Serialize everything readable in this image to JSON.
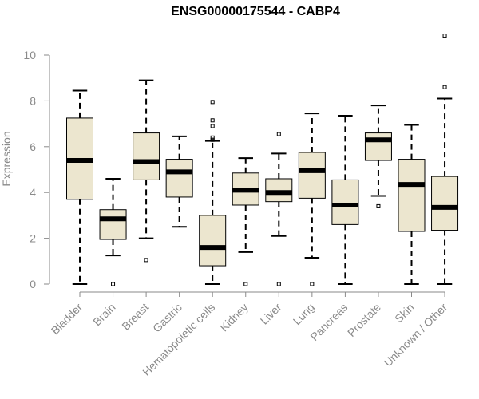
{
  "chart_data": {
    "type": "boxplot",
    "title": "ENSG00000175544 - CABP4",
    "xlabel": "",
    "ylabel": "Expression",
    "ylim": [
      0,
      11
    ],
    "yticks": [
      0,
      2,
      4,
      6,
      8,
      10
    ],
    "grid": false,
    "colors": {
      "box_fill": "#ece6cf",
      "box_stroke": "#000000",
      "axis": "#8a8a8a"
    },
    "categories": [
      "Bladder",
      "Brain",
      "Breast",
      "Gastric",
      "Hematopoietic cells",
      "Kidney",
      "Liver",
      "Lung",
      "Pancreas",
      "Prostate",
      "Skin",
      "Unknown / Other"
    ],
    "boxes": [
      {
        "category": "Bladder",
        "whisker_low": 0.0,
        "q1": 3.7,
        "median": 5.4,
        "q3": 7.25,
        "whisker_high": 8.45,
        "outliers": []
      },
      {
        "category": "Brain",
        "whisker_low": 1.25,
        "q1": 1.95,
        "median": 2.85,
        "q3": 3.25,
        "whisker_high": 4.6,
        "outliers": [
          0.0
        ]
      },
      {
        "category": "Breast",
        "whisker_low": 2.0,
        "q1": 4.55,
        "median": 5.35,
        "q3": 6.6,
        "whisker_high": 8.9,
        "outliers": [
          1.05
        ]
      },
      {
        "category": "Gastric",
        "whisker_low": 2.5,
        "q1": 3.8,
        "median": 4.9,
        "q3": 5.45,
        "whisker_high": 6.45,
        "outliers": []
      },
      {
        "category": "Hematopoietic cells",
        "whisker_low": 0.0,
        "q1": 0.8,
        "median": 1.6,
        "q3": 3.0,
        "whisker_high": 6.25,
        "outliers": [
          6.3,
          6.4,
          6.9,
          7.15,
          7.95
        ]
      },
      {
        "category": "Kidney",
        "whisker_low": 1.4,
        "q1": 3.45,
        "median": 4.1,
        "q3": 4.85,
        "whisker_high": 5.5,
        "outliers": [
          0.0
        ]
      },
      {
        "category": "Liver",
        "whisker_low": 2.1,
        "q1": 3.6,
        "median": 4.0,
        "q3": 4.6,
        "whisker_high": 5.7,
        "outliers": [
          0.0,
          6.55
        ]
      },
      {
        "category": "Lung",
        "whisker_low": 1.15,
        "q1": 3.75,
        "median": 4.95,
        "q3": 5.75,
        "whisker_high": 7.45,
        "outliers": [
          0.0
        ]
      },
      {
        "category": "Pancreas",
        "whisker_low": 0.0,
        "q1": 2.6,
        "median": 3.45,
        "q3": 4.55,
        "whisker_high": 7.35,
        "outliers": []
      },
      {
        "category": "Prostate",
        "whisker_low": 3.85,
        "q1": 5.4,
        "median": 6.3,
        "q3": 6.6,
        "whisker_high": 7.8,
        "outliers": [
          3.4
        ]
      },
      {
        "category": "Skin",
        "whisker_low": 0.0,
        "q1": 2.3,
        "median": 4.35,
        "q3": 5.45,
        "whisker_high": 6.95,
        "outliers": []
      },
      {
        "category": "Unknown / Other",
        "whisker_low": 0.0,
        "q1": 2.35,
        "median": 3.35,
        "q3": 4.7,
        "whisker_high": 8.1,
        "outliers": [
          8.6,
          10.85
        ]
      }
    ]
  }
}
